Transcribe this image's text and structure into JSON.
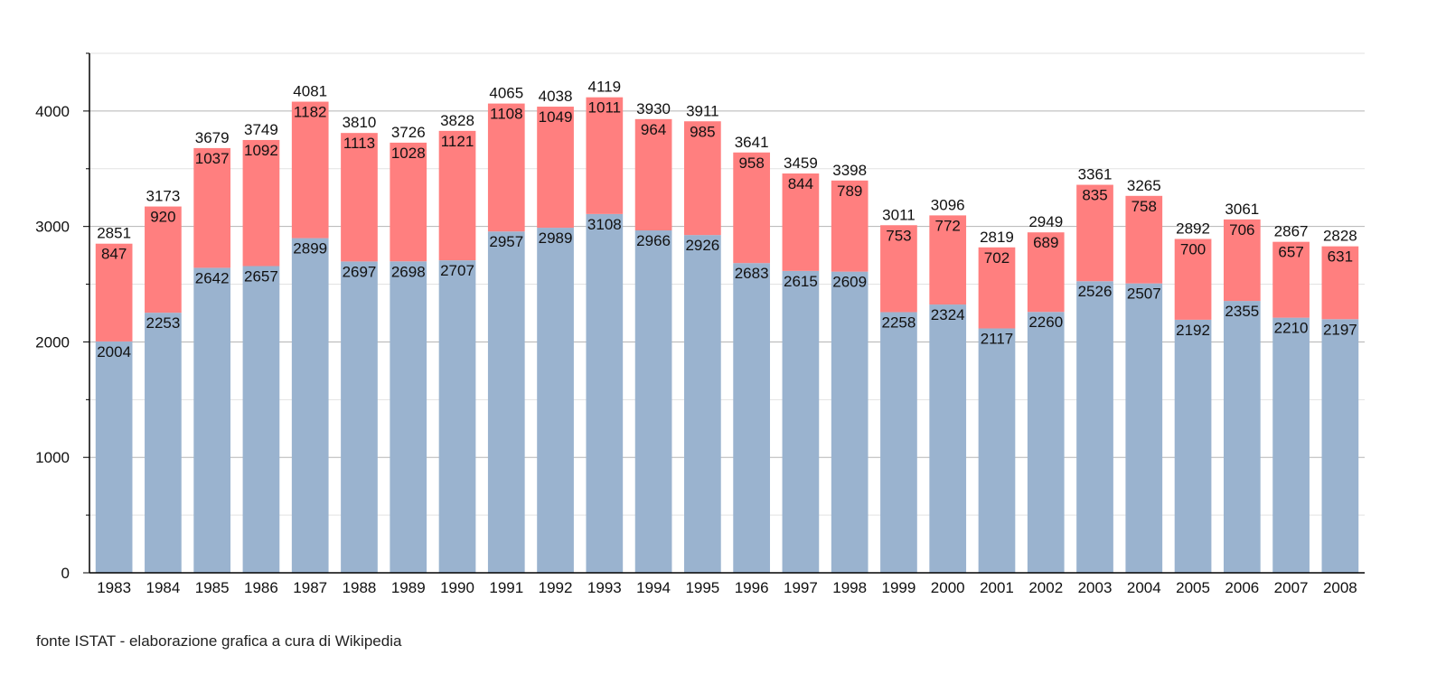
{
  "chart_data": {
    "type": "bar",
    "stacked": true,
    "categories": [
      "1983",
      "1984",
      "1985",
      "1986",
      "1987",
      "1988",
      "1989",
      "1990",
      "1991",
      "1992",
      "1993",
      "1994",
      "1995",
      "1996",
      "1997",
      "1998",
      "1999",
      "2000",
      "2001",
      "2002",
      "2003",
      "2004",
      "2005",
      "2006",
      "2007",
      "2008"
    ],
    "series": [
      {
        "color": "#9ab3cf",
        "values": [
          2004,
          2253,
          2642,
          2657,
          2899,
          2697,
          2698,
          2707,
          2957,
          2989,
          3108,
          2966,
          2926,
          2683,
          2615,
          2609,
          2258,
          2324,
          2117,
          2260,
          2526,
          2507,
          2192,
          2355,
          2210,
          2197
        ]
      },
      {
        "color": "#ff7f7f",
        "values": [
          847,
          920,
          1037,
          1092,
          1182,
          1113,
          1028,
          1121,
          1108,
          1049,
          1011,
          964,
          985,
          958,
          844,
          789,
          753,
          772,
          702,
          689,
          835,
          758,
          700,
          706,
          657,
          631
        ]
      }
    ],
    "totals": [
      2851,
      3173,
      3679,
      3749,
      4081,
      3810,
      3726,
      3828,
      4065,
      4038,
      4119,
      3930,
      3911,
      3641,
      3459,
      3398,
      3011,
      3096,
      2819,
      2949,
      3361,
      3265,
      2892,
      3061,
      2867,
      2828
    ],
    "ylim": [
      0,
      4500
    ],
    "yticks": [
      0,
      1000,
      2000,
      3000,
      4000
    ],
    "grid": true,
    "title": "",
    "xlabel": "",
    "ylabel": ""
  },
  "footer": {
    "source": "fonte ISTAT - elaborazione grafica a cura di Wikipedia"
  }
}
